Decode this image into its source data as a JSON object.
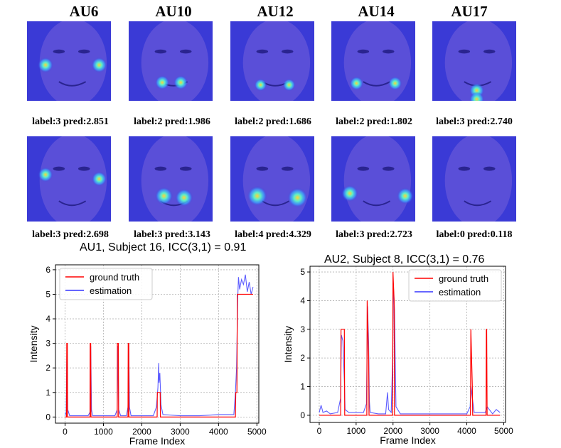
{
  "au_headers": [
    "AU6",
    "AU10",
    "AU12",
    "AU14",
    "AU17"
  ],
  "faces": {
    "row1": [
      {
        "au": "AU6",
        "label": "label:3  pred:2.851",
        "heat_level": 0.6
      },
      {
        "au": "AU10",
        "label": "label:2  pred:1.986",
        "heat_level": 0.5
      },
      {
        "au": "AU12",
        "label": "label:2  pred:1.686",
        "heat_level": 0.35
      },
      {
        "au": "AU14",
        "label": "label:2  pred:1.802",
        "heat_level": 0.45
      },
      {
        "au": "AU17",
        "label": "label:3  pred:2.740",
        "heat_level": 0.55
      }
    ],
    "row2": [
      {
        "au": "AU6",
        "label": "label:3  pred:2.698",
        "heat_level": 0.55
      },
      {
        "au": "AU10",
        "label": "label:3  pred:3.143",
        "heat_level": 0.8
      },
      {
        "au": "AU12",
        "label": "label:4  pred:4.329",
        "heat_level": 1.0
      },
      {
        "au": "AU14",
        "label": "label:3  pred:2.723",
        "heat_level": 0.7
      },
      {
        "au": "AU17",
        "label": "label:0  pred:0.118",
        "heat_level": 0.0
      }
    ]
  },
  "colors": {
    "face_bg": "#3a3ad6",
    "ground_truth": "#ff0000",
    "estimation": "#3333ff",
    "grid": "#b0b0b0"
  },
  "chart_data": [
    {
      "type": "line",
      "title": "AU1, Subject 16, ICC(3,1) = 0.91",
      "xlabel": "Frame Index",
      "ylabel": "Intensity",
      "xlim": [
        -250,
        5050
      ],
      "ylim": [
        -0.25,
        6.2
      ],
      "xticks": [
        0,
        1000,
        2000,
        3000,
        4000,
        5000
      ],
      "yticks": [
        0,
        1,
        2,
        3,
        4,
        5,
        6
      ],
      "legend": "top-left",
      "series": [
        {
          "name": "ground truth",
          "x": [
            0,
            40,
            45,
            60,
            65,
            650,
            655,
            670,
            675,
            1360,
            1365,
            1390,
            1395,
            1640,
            1645,
            1660,
            1665,
            2400,
            2405,
            2480,
            2485,
            4440,
            4450,
            4480,
            4490,
            4900
          ],
          "y": [
            0,
            0,
            3,
            3,
            0,
            0,
            3,
            3,
            0,
            0,
            3,
            3,
            0,
            0,
            3,
            3,
            0,
            0,
            1,
            1,
            0,
            0,
            1,
            1,
            5,
            5
          ]
        },
        {
          "name": "estimation",
          "x": [
            0,
            30,
            50,
            70,
            120,
            600,
            650,
            670,
            690,
            720,
            1300,
            1360,
            1380,
            1400,
            1450,
            1600,
            1640,
            1660,
            1680,
            1720,
            2300,
            2380,
            2420,
            2440,
            2450,
            2470,
            2500,
            2550,
            3000,
            3500,
            4000,
            4400,
            4440,
            4470,
            4500,
            4520,
            4550,
            4600,
            4650,
            4700,
            4750,
            4800,
            4850,
            4900
          ],
          "y": [
            0.05,
            0.2,
            3.0,
            0.3,
            0.05,
            0.05,
            0.2,
            2.9,
            0.3,
            0.05,
            0.05,
            0.3,
            2.9,
            0.3,
            0.05,
            0.05,
            0.4,
            3.0,
            0.4,
            0.05,
            0.05,
            0.4,
            1.2,
            2.2,
            1.4,
            1.8,
            0.5,
            0.1,
            0.05,
            0.05,
            0.1,
            0.1,
            1.0,
            2.0,
            4.8,
            5.7,
            5.2,
            5.6,
            5.4,
            5.8,
            5.1,
            5.5,
            5.0,
            5.3
          ]
        }
      ]
    },
    {
      "type": "line",
      "title": "AU2, Subject 8, ICC(3,1) = 0.76",
      "xlabel": "Frame Index",
      "ylabel": "Intensity",
      "xlim": [
        -250,
        5050
      ],
      "ylim": [
        -0.25,
        5.2
      ],
      "xticks": [
        0,
        1000,
        2000,
        3000,
        4000,
        5000
      ],
      "yticks": [
        0,
        1,
        2,
        3,
        4,
        5
      ],
      "legend": "top-right",
      "series": [
        {
          "name": "ground truth",
          "x": [
            0,
            580,
            590,
            680,
            690,
            1290,
            1300,
            1340,
            1350,
            1990,
            2000,
            2030,
            2040,
            4100,
            4110,
            4150,
            4160,
            4520,
            4530,
            4540,
            4550,
            4900
          ],
          "y": [
            0,
            0,
            3,
            3,
            0,
            0,
            4,
            2,
            0,
            0,
            5,
            4,
            0,
            0,
            3,
            1,
            0,
            0,
            3,
            3,
            0,
            0
          ]
        },
        {
          "name": "estimation",
          "x": [
            0,
            50,
            100,
            200,
            300,
            500,
            580,
            600,
            640,
            680,
            700,
            800,
            1200,
            1280,
            1310,
            1340,
            1360,
            1380,
            1600,
            1800,
            1850,
            1880,
            1950,
            1990,
            2010,
            2040,
            2080,
            2200,
            2500,
            3000,
            3500,
            4000,
            4090,
            4110,
            4150,
            4200,
            4500,
            4550,
            4700,
            4800,
            4900
          ],
          "y": [
            0.1,
            0.35,
            0.1,
            0.15,
            0.05,
            0.1,
            0.6,
            2.8,
            2.6,
            1.2,
            0.2,
            0.1,
            0.1,
            0.4,
            3.8,
            2.5,
            0.5,
            0.1,
            0.05,
            0.05,
            0.8,
            0.2,
            0.1,
            2.0,
            4.5,
            3.7,
            0.3,
            0.05,
            0.05,
            0.05,
            0.05,
            0.05,
            0.3,
            1.0,
            0.6,
            0.1,
            0.1,
            0.3,
            0.05,
            0.2,
            0.1
          ]
        }
      ]
    }
  ]
}
